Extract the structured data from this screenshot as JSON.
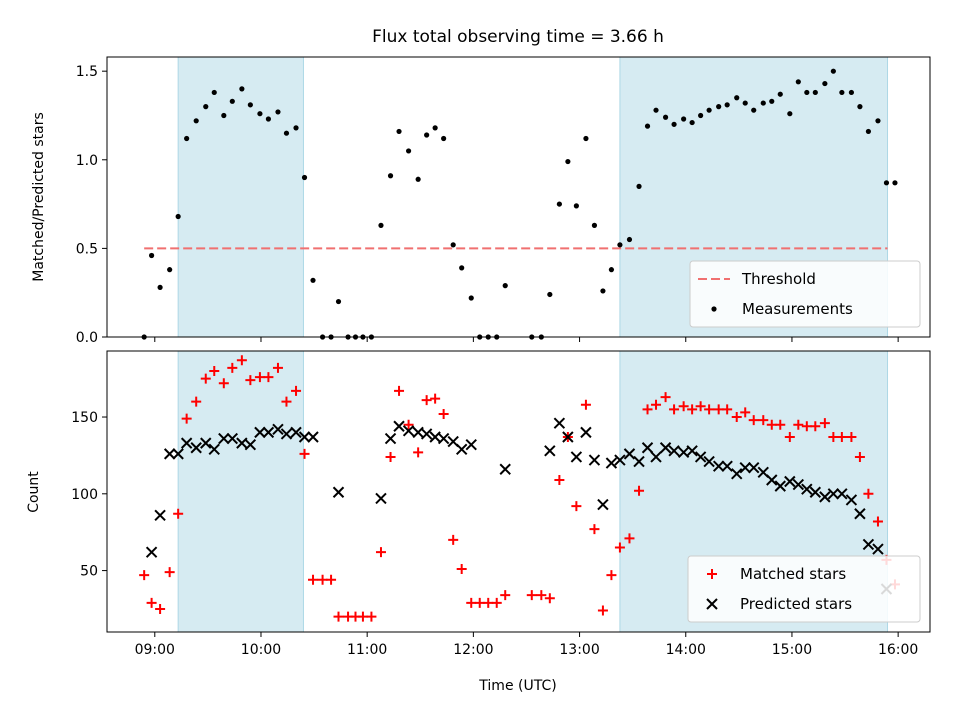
{
  "title": "Flux total observing time = 3.66 h",
  "chart_data": [
    {
      "type": "scatter",
      "panel": "top",
      "ylabel": "Matched/Predicted stars",
      "xlim": [
        8.55,
        16.3
      ],
      "ylim": [
        0,
        1.58
      ],
      "yticks": [
        0.0,
        0.5,
        1.0,
        1.5
      ],
      "ytick_labels": [
        "0.0",
        "0.5",
        "1.0",
        "1.5"
      ],
      "shaded_intervals": [
        [
          9.22,
          10.4
        ],
        [
          13.38,
          15.9
        ]
      ],
      "threshold": {
        "name": "Threshold",
        "value": 0.5,
        "x_range": [
          8.9,
          15.9
        ],
        "color": "#f07070"
      },
      "legend": {
        "placement": "lower right",
        "entries": [
          "Threshold",
          "Measurements"
        ]
      },
      "series": [
        {
          "name": "Measurements",
          "color": "#000000",
          "marker": "dot",
          "points": [
            [
              8.9,
              0.0
            ],
            [
              8.97,
              0.46
            ],
            [
              9.05,
              0.28
            ],
            [
              9.14,
              0.38
            ],
            [
              9.22,
              0.68
            ],
            [
              9.3,
              1.12
            ],
            [
              9.39,
              1.22
            ],
            [
              9.48,
              1.3
            ],
            [
              9.56,
              1.38
            ],
            [
              9.65,
              1.25
            ],
            [
              9.73,
              1.33
            ],
            [
              9.82,
              1.4
            ],
            [
              9.9,
              1.31
            ],
            [
              9.99,
              1.26
            ],
            [
              10.07,
              1.23
            ],
            [
              10.16,
              1.27
            ],
            [
              10.24,
              1.15
            ],
            [
              10.33,
              1.18
            ],
            [
              10.41,
              0.9
            ],
            [
              10.49,
              0.32
            ],
            [
              10.58,
              0.0
            ],
            [
              10.66,
              0.0
            ],
            [
              10.73,
              0.2
            ],
            [
              10.82,
              0.0
            ],
            [
              10.89,
              0.0
            ],
            [
              10.96,
              0.0
            ],
            [
              11.04,
              0.0
            ],
            [
              11.13,
              0.63
            ],
            [
              11.22,
              0.91
            ],
            [
              11.3,
              1.16
            ],
            [
              11.39,
              1.05
            ],
            [
              11.48,
              0.89
            ],
            [
              11.56,
              1.14
            ],
            [
              11.64,
              1.18
            ],
            [
              11.72,
              1.12
            ],
            [
              11.81,
              0.52
            ],
            [
              11.89,
              0.39
            ],
            [
              11.98,
              0.22
            ],
            [
              12.06,
              0.0
            ],
            [
              12.14,
              0.0
            ],
            [
              12.22,
              0.0
            ],
            [
              12.3,
              0.29
            ],
            [
              12.55,
              0.0
            ],
            [
              12.64,
              0.0
            ],
            [
              12.72,
              0.24
            ],
            [
              12.81,
              0.75
            ],
            [
              12.89,
              0.99
            ],
            [
              12.97,
              0.74
            ],
            [
              13.06,
              1.12
            ],
            [
              13.14,
              0.63
            ],
            [
              13.22,
              0.26
            ],
            [
              13.3,
              0.38
            ],
            [
              13.38,
              0.52
            ],
            [
              13.47,
              0.55
            ],
            [
              13.56,
              0.85
            ],
            [
              13.64,
              1.19
            ],
            [
              13.72,
              1.28
            ],
            [
              13.81,
              1.24
            ],
            [
              13.89,
              1.2
            ],
            [
              13.98,
              1.23
            ],
            [
              14.06,
              1.21
            ],
            [
              14.14,
              1.25
            ],
            [
              14.22,
              1.28
            ],
            [
              14.31,
              1.3
            ],
            [
              14.39,
              1.31
            ],
            [
              14.48,
              1.35
            ],
            [
              14.56,
              1.32
            ],
            [
              14.64,
              1.28
            ],
            [
              14.73,
              1.32
            ],
            [
              14.81,
              1.33
            ],
            [
              14.89,
              1.37
            ],
            [
              14.98,
              1.26
            ],
            [
              15.06,
              1.44
            ],
            [
              15.14,
              1.38
            ],
            [
              15.22,
              1.38
            ],
            [
              15.31,
              1.43
            ],
            [
              15.39,
              1.5
            ],
            [
              15.47,
              1.38
            ],
            [
              15.56,
              1.38
            ],
            [
              15.64,
              1.3
            ],
            [
              15.72,
              1.16
            ],
            [
              15.81,
              1.22
            ],
            [
              15.89,
              0.87
            ],
            [
              15.97,
              0.87
            ]
          ]
        }
      ]
    },
    {
      "type": "scatter",
      "panel": "bottom",
      "ylabel": "Count",
      "xlabel": "Time (UTC)",
      "xlim": [
        8.55,
        16.3
      ],
      "ylim": [
        10,
        193
      ],
      "xticks": [
        9,
        10,
        11,
        12,
        13,
        14,
        15,
        16
      ],
      "xtick_labels": [
        "09:00",
        "10:00",
        "11:00",
        "12:00",
        "13:00",
        "14:00",
        "15:00",
        "16:00"
      ],
      "yticks": [
        50,
        100,
        150
      ],
      "ytick_labels": [
        "50",
        "100",
        "150"
      ],
      "shaded_intervals": [
        [
          9.22,
          10.4
        ],
        [
          13.38,
          15.9
        ]
      ],
      "legend": {
        "placement": "lower right",
        "entries": [
          "Matched stars",
          "Predicted stars"
        ]
      },
      "series": [
        {
          "name": "Matched stars",
          "color": "#ff0000",
          "marker": "plus",
          "points": [
            [
              8.9,
              47
            ],
            [
              8.97,
              29
            ],
            [
              9.05,
              25
            ],
            [
              9.14,
              49
            ],
            [
              9.22,
              87
            ],
            [
              9.3,
              149
            ],
            [
              9.39,
              160
            ],
            [
              9.48,
              175
            ],
            [
              9.56,
              180
            ],
            [
              9.65,
              172
            ],
            [
              9.73,
              182
            ],
            [
              9.82,
              187
            ],
            [
              9.9,
              174
            ],
            [
              9.99,
              176
            ],
            [
              10.07,
              176
            ],
            [
              10.16,
              182
            ],
            [
              10.24,
              160
            ],
            [
              10.33,
              167
            ],
            [
              10.41,
              126
            ],
            [
              10.49,
              44
            ],
            [
              10.58,
              44
            ],
            [
              10.66,
              44
            ],
            [
              10.73,
              20
            ],
            [
              10.82,
              20
            ],
            [
              10.89,
              20
            ],
            [
              10.96,
              20
            ],
            [
              11.04,
              20
            ],
            [
              11.13,
              62
            ],
            [
              11.22,
              124
            ],
            [
              11.3,
              167
            ],
            [
              11.39,
              145
            ],
            [
              11.48,
              127
            ],
            [
              11.56,
              161
            ],
            [
              11.64,
              162
            ],
            [
              11.72,
              152
            ],
            [
              11.81,
              70
            ],
            [
              11.89,
              51
            ],
            [
              11.98,
              29
            ],
            [
              12.06,
              29
            ],
            [
              12.14,
              29
            ],
            [
              12.22,
              29
            ],
            [
              12.3,
              34
            ],
            [
              12.55,
              34
            ],
            [
              12.64,
              34
            ],
            [
              12.72,
              32
            ],
            [
              12.81,
              109
            ],
            [
              12.89,
              137
            ],
            [
              12.97,
              92
            ],
            [
              13.06,
              158
            ],
            [
              13.14,
              77
            ],
            [
              13.22,
              24
            ],
            [
              13.3,
              47
            ],
            [
              13.38,
              65
            ],
            [
              13.47,
              71
            ],
            [
              13.56,
              102
            ],
            [
              13.64,
              155
            ],
            [
              13.72,
              158
            ],
            [
              13.81,
              163
            ],
            [
              13.89,
              155
            ],
            [
              13.98,
              157
            ],
            [
              14.06,
              155
            ],
            [
              14.14,
              157
            ],
            [
              14.22,
              155
            ],
            [
              14.31,
              155
            ],
            [
              14.39,
              155
            ],
            [
              14.48,
              150
            ],
            [
              14.56,
              153
            ],
            [
              14.64,
              148
            ],
            [
              14.73,
              148
            ],
            [
              14.81,
              145
            ],
            [
              14.89,
              145
            ],
            [
              14.98,
              137
            ],
            [
              15.06,
              145
            ],
            [
              15.14,
              144
            ],
            [
              15.22,
              144
            ],
            [
              15.31,
              146
            ],
            [
              15.39,
              137
            ],
            [
              15.47,
              137
            ],
            [
              15.56,
              137
            ],
            [
              15.64,
              124
            ],
            [
              15.72,
              100
            ],
            [
              15.81,
              82
            ],
            [
              15.89,
              57
            ],
            [
              15.97,
              41
            ]
          ]
        },
        {
          "name": "Predicted stars",
          "color": "#000000",
          "marker": "x",
          "points": [
            [
              8.97,
              62
            ],
            [
              9.05,
              86
            ],
            [
              9.14,
              126
            ],
            [
              9.22,
              126
            ],
            [
              9.3,
              133
            ],
            [
              9.39,
              130
            ],
            [
              9.48,
              133
            ],
            [
              9.56,
              129
            ],
            [
              9.65,
              136
            ],
            [
              9.73,
              136
            ],
            [
              9.82,
              133
            ],
            [
              9.9,
              132
            ],
            [
              9.99,
              140
            ],
            [
              10.07,
              140
            ],
            [
              10.16,
              142
            ],
            [
              10.24,
              139
            ],
            [
              10.33,
              140
            ],
            [
              10.41,
              137
            ],
            [
              10.49,
              137
            ],
            [
              10.73,
              101
            ],
            [
              11.13,
              97
            ],
            [
              11.22,
              136
            ],
            [
              11.3,
              144
            ],
            [
              11.39,
              141
            ],
            [
              11.48,
              140
            ],
            [
              11.56,
              139
            ],
            [
              11.64,
              137
            ],
            [
              11.72,
              136
            ],
            [
              11.81,
              134
            ],
            [
              11.89,
              129
            ],
            [
              11.98,
              132
            ],
            [
              12.3,
              116
            ],
            [
              12.72,
              128
            ],
            [
              12.81,
              146
            ],
            [
              12.89,
              137
            ],
            [
              12.97,
              124
            ],
            [
              13.06,
              140
            ],
            [
              13.14,
              122
            ],
            [
              13.22,
              93
            ],
            [
              13.3,
              120
            ],
            [
              13.38,
              122
            ],
            [
              13.47,
              126
            ],
            [
              13.56,
              121
            ],
            [
              13.64,
              130
            ],
            [
              13.72,
              124
            ],
            [
              13.81,
              130
            ],
            [
              13.89,
              128
            ],
            [
              13.98,
              127
            ],
            [
              14.06,
              128
            ],
            [
              14.14,
              124
            ],
            [
              14.22,
              121
            ],
            [
              14.31,
              118
            ],
            [
              14.39,
              118
            ],
            [
              14.48,
              113
            ],
            [
              14.56,
              117
            ],
            [
              14.64,
              117
            ],
            [
              14.73,
              114
            ],
            [
              14.81,
              109
            ],
            [
              14.89,
              105
            ],
            [
              14.98,
              108
            ],
            [
              15.06,
              106
            ],
            [
              15.14,
              103
            ],
            [
              15.22,
              101
            ],
            [
              15.31,
              98
            ],
            [
              15.39,
              100
            ],
            [
              15.47,
              100
            ],
            [
              15.56,
              96
            ],
            [
              15.64,
              87
            ],
            [
              15.72,
              67
            ],
            [
              15.81,
              64
            ],
            [
              15.89,
              38
            ]
          ]
        }
      ]
    }
  ]
}
